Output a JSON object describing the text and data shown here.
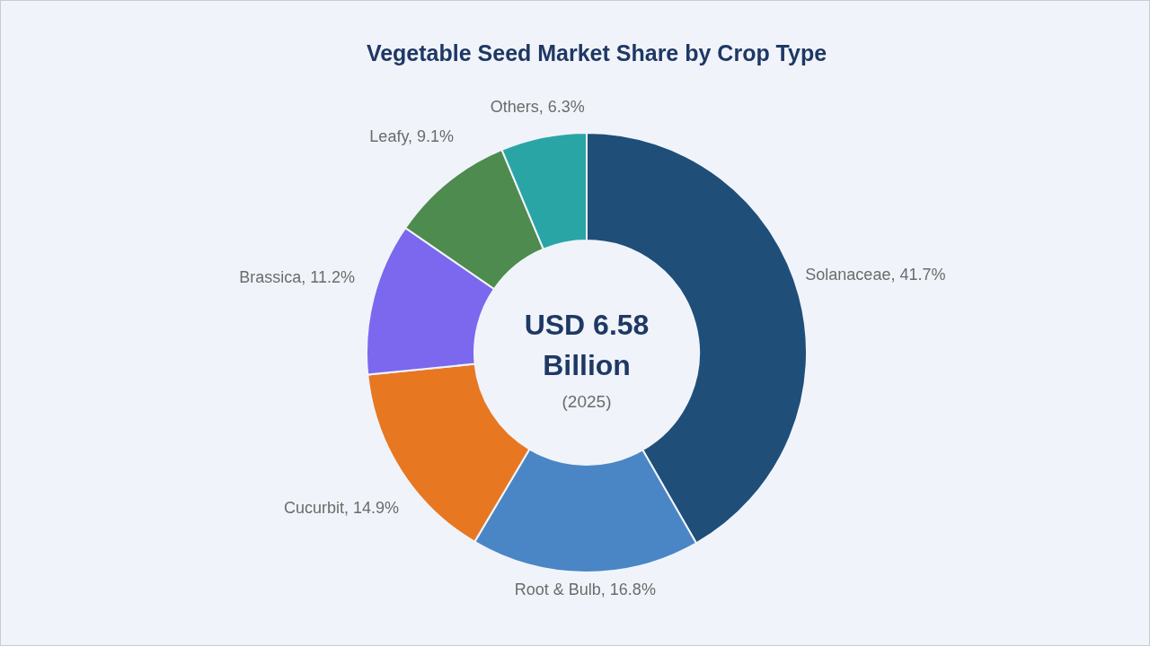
{
  "chart_data": {
    "type": "donut",
    "title": "Vegetable Seed Market Share by Crop Type",
    "categories": [
      "Solanaceae",
      "Root & Bulb",
      "Cucurbit",
      "Brassica",
      "Leafy",
      "Others"
    ],
    "values": [
      41.7,
      16.8,
      14.9,
      11.2,
      9.1,
      6.3
    ],
    "colors": [
      "#1f4e79",
      "#4a86c5",
      "#e87722",
      "#7b68ee",
      "#4e8b4e",
      "#2aa5a5"
    ],
    "value_labels": [
      "41.7%",
      "16.8%",
      "14.9%",
      "11.2%",
      "9.1%",
      "6.3%"
    ],
    "annotations": [
      "USD 6.58",
      "Billion",
      "(2025)"
    ],
    "legend": false
  }
}
